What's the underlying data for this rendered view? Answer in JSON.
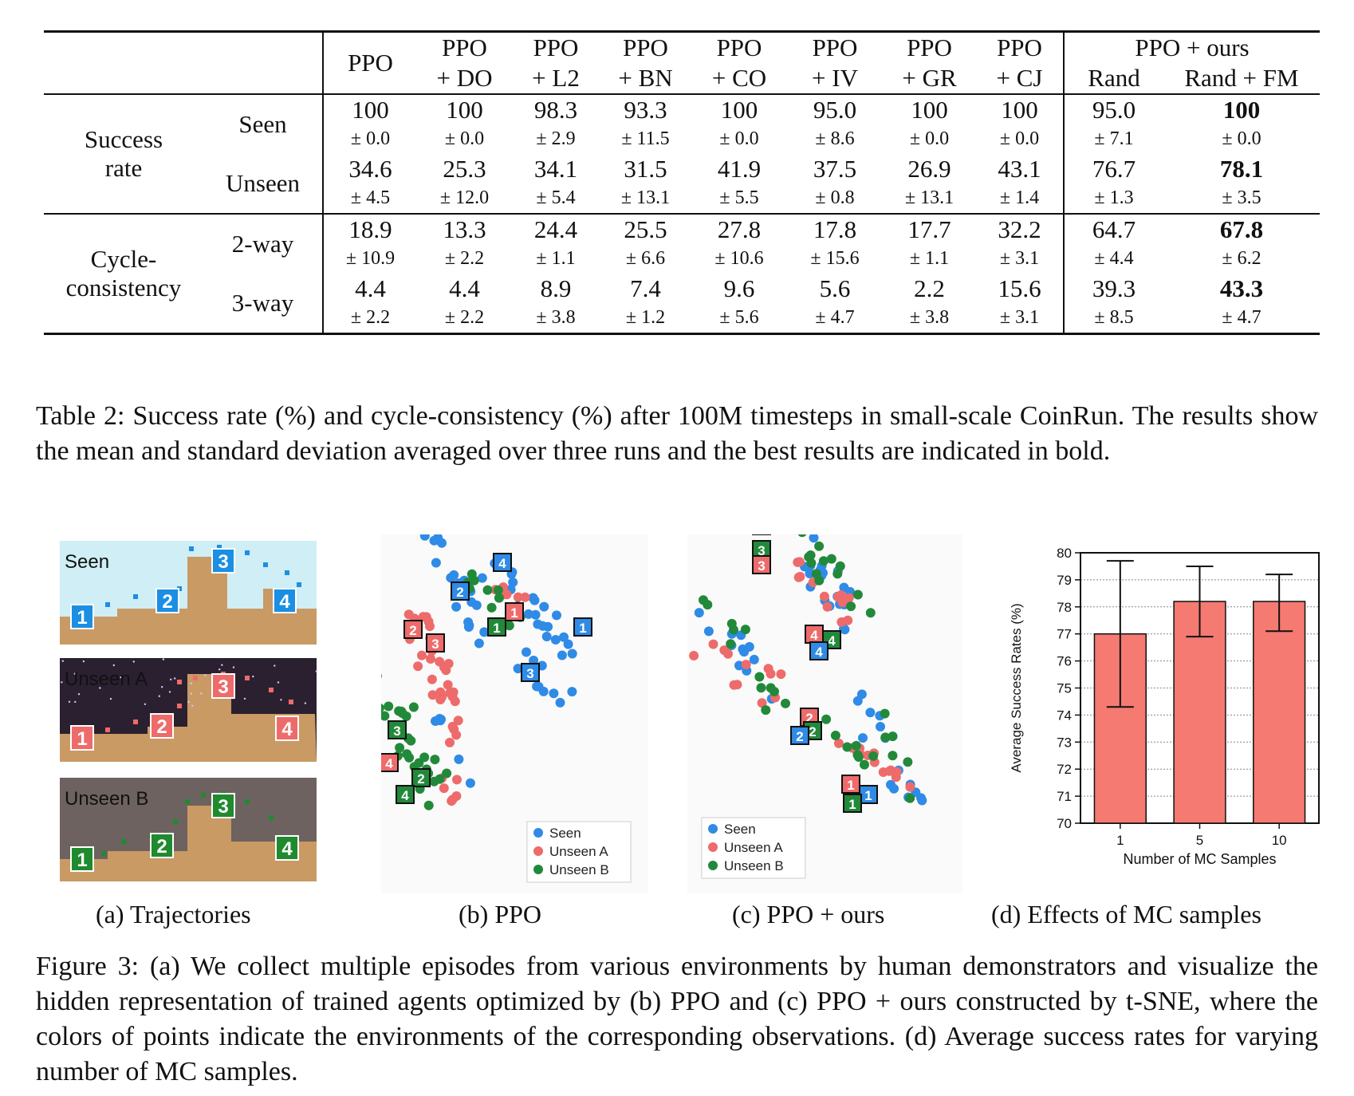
{
  "table": {
    "group_header": "PPO + ours",
    "columns": [
      {
        "line1": "PPO",
        "line2": ""
      },
      {
        "line1": "PPO",
        "line2": "+ DO"
      },
      {
        "line1": "PPO",
        "line2": "+ L2"
      },
      {
        "line1": "PPO",
        "line2": "+ BN"
      },
      {
        "line1": "PPO",
        "line2": "+ CO"
      },
      {
        "line1": "PPO",
        "line2": "+ IV"
      },
      {
        "line1": "PPO",
        "line2": "+ GR"
      },
      {
        "line1": "PPO",
        "line2": "+ CJ"
      },
      {
        "line1": "",
        "line2": "Rand"
      },
      {
        "line1": "",
        "line2": "Rand + FM"
      }
    ],
    "sections": [
      {
        "label_line1": "Success",
        "label_line2": "rate",
        "rows": [
          {
            "label": "Seen",
            "values": [
              "100",
              "100",
              "98.3",
              "93.3",
              "100",
              "95.0",
              "100",
              "100",
              "95.0",
              "100"
            ],
            "sds": [
              "± 0.0",
              "± 0.0",
              "± 2.9",
              "± 11.5",
              "± 0.0",
              "± 8.6",
              "± 0.0",
              "± 0.0",
              "± 7.1",
              "± 0.0"
            ],
            "best": 9
          },
          {
            "label": "Unseen",
            "values": [
              "34.6",
              "25.3",
              "34.1",
              "31.5",
              "41.9",
              "37.5",
              "26.9",
              "43.1",
              "76.7",
              "78.1"
            ],
            "sds": [
              "± 4.5",
              "± 12.0",
              "± 5.4",
              "± 13.1",
              "± 5.5",
              "± 0.8",
              "± 13.1",
              "± 1.4",
              "± 1.3",
              "± 3.5"
            ],
            "best": 9
          }
        ]
      },
      {
        "label_line1": "Cycle-",
        "label_line2": "consistency",
        "rows": [
          {
            "label": "2-way",
            "values": [
              "18.9",
              "13.3",
              "24.4",
              "25.5",
              "27.8",
              "17.8",
              "17.7",
              "32.2",
              "64.7",
              "67.8"
            ],
            "sds": [
              "± 10.9",
              "± 2.2",
              "± 1.1",
              "± 6.6",
              "± 10.6",
              "± 15.6",
              "± 1.1",
              "± 3.1",
              "± 4.4",
              "± 6.2"
            ],
            "best": 9
          },
          {
            "label": "3-way",
            "values": [
              "4.4",
              "4.4",
              "8.9",
              "7.4",
              "9.6",
              "5.6",
              "2.2",
              "15.6",
              "39.3",
              "43.3"
            ],
            "sds": [
              "± 2.2",
              "± 2.2",
              "± 3.8",
              "± 1.2",
              "± 5.6",
              "± 4.7",
              "± 3.8",
              "± 3.1",
              "± 8.5",
              "± 4.7"
            ],
            "best": 9
          }
        ]
      }
    ]
  },
  "table_caption": "Table 2: Success rate (%) and cycle-consistency (%) after 100M timesteps in small-scale CoinRun. The results show the mean and standard deviation averaged over three runs and the best results are indicated in bold.",
  "figure": {
    "trajectories": {
      "panels": [
        {
          "label": "Seen",
          "sky": "#cfeef5",
          "markers": [
            "1",
            "2",
            "3",
            "4"
          ],
          "color": "#1a8fe3"
        },
        {
          "label": "Unseen A",
          "sky": "#2a2030",
          "markers": [
            "1",
            "2",
            "3",
            "4"
          ],
          "color": "#ee6b6b"
        },
        {
          "label": "Unseen B",
          "sky": "#6e6260",
          "markers": [
            "1",
            "2",
            "3",
            "4"
          ],
          "color": "#1f8a2e"
        }
      ]
    },
    "legend": [
      "Seen",
      "Unseen A",
      "Unseen B"
    ],
    "colors": {
      "seen": "#2f8be6",
      "unseen_a": "#ee6b6b",
      "unseen_b": "#22893a",
      "bar": "#f47a72"
    },
    "subcaptions": {
      "a": "(a) Trajectories",
      "b": "(b) PPO",
      "c": "(c) PPO + ours",
      "d": "(d) Effects of MC samples"
    }
  },
  "chart_data": {
    "type": "bar",
    "categories": [
      "1",
      "5",
      "10"
    ],
    "values": [
      77.0,
      78.2,
      78.2
    ],
    "error_low": [
      74.3,
      76.9,
      77.1
    ],
    "error_high": [
      79.7,
      79.5,
      79.2
    ],
    "xlabel": "Number of MC Samples",
    "ylabel": "Average Success Rates (%)",
    "ylim": [
      70,
      80
    ],
    "yticks": [
      "70",
      "71",
      "72",
      "73",
      "74",
      "75",
      "76",
      "77",
      "78",
      "79",
      "80"
    ],
    "grid": true,
    "bar_color": "#f47a72"
  },
  "figure_caption": "Figure 3: (a) We collect multiple episodes from various environments by human demonstrators and visualize the hidden representation of trained agents optimized by (b) PPO and (c) PPO + ours constructed by t-SNE, where the colors of points indicate the environments of the corresponding observations. (d) Average success rates for varying number of MC samples."
}
